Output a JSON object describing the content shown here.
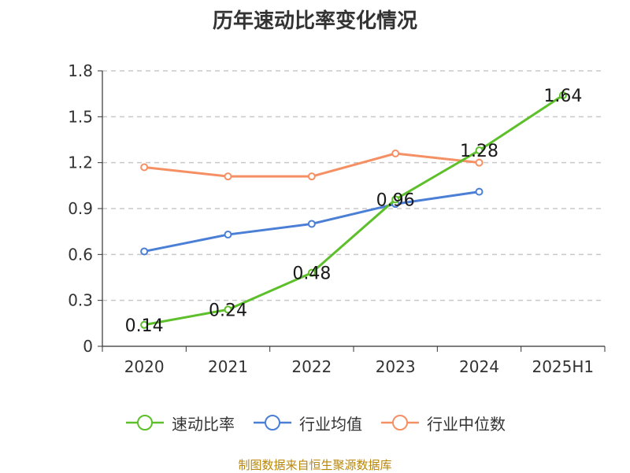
{
  "chart_data": {
    "type": "line",
    "title": "历年速动比率变化情况",
    "categories": [
      "2020",
      "2021",
      "2022",
      "2023",
      "2024",
      "2025H1"
    ],
    "yticks": [
      "0",
      "0.3",
      "0.6",
      "0.9",
      "1.2",
      "1.5",
      "1.8"
    ],
    "ylim": [
      0,
      1.8
    ],
    "grid": true,
    "legend_position": "bottom",
    "series": [
      {
        "name": "速动比率",
        "color": "#5dbf2a",
        "values": [
          0.14,
          0.24,
          0.48,
          0.96,
          1.28,
          1.64
        ],
        "labels": [
          "0.14",
          "0.24",
          "0.48",
          "0.96",
          "1.28",
          "1.64"
        ]
      },
      {
        "name": "行业均值",
        "color": "#4b7fd6",
        "values": [
          0.62,
          0.73,
          0.8,
          0.93,
          1.01,
          null
        ]
      },
      {
        "name": "行业中位数",
        "color": "#f59064",
        "values": [
          1.17,
          1.11,
          1.11,
          1.26,
          1.2,
          null
        ]
      }
    ]
  },
  "footer": "制图数据来自恒生聚源数据库"
}
